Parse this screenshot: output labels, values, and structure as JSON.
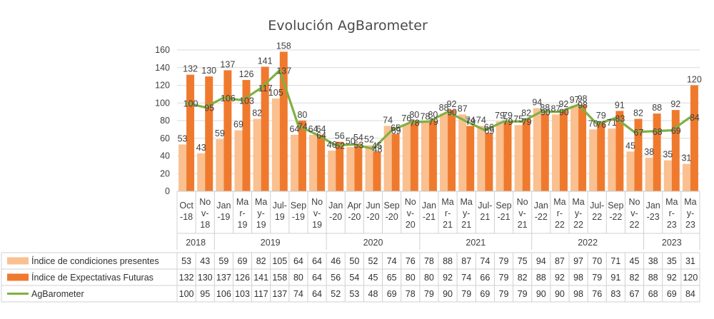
{
  "chart_data": {
    "type": "bar",
    "title": "Evolución AgBarometer",
    "ylim": [
      0,
      160
    ],
    "yticks": [
      0,
      20,
      40,
      60,
      80,
      100,
      120,
      140,
      160
    ],
    "grid": true,
    "categories": [
      [
        "Oct",
        "-18"
      ],
      [
        "No",
        "v-",
        "18"
      ],
      [
        "Jan",
        "-19"
      ],
      [
        "Ma",
        "r-",
        "19"
      ],
      [
        "Ma",
        "y-",
        "19"
      ],
      [
        "Jul-",
        "19"
      ],
      [
        "Sep",
        "-19"
      ],
      [
        "No",
        "v-",
        "19"
      ],
      [
        "Jan",
        "-20"
      ],
      [
        "Apr",
        "-20"
      ],
      [
        "Jun",
        "-20"
      ],
      [
        "Sep",
        "-20"
      ],
      [
        "No",
        "v-",
        "20"
      ],
      [
        "Jan",
        "-21"
      ],
      [
        "Ma",
        "r-",
        "21"
      ],
      [
        "Ma",
        "y-",
        "21"
      ],
      [
        "Jul-",
        "21"
      ],
      [
        "Sep",
        "-21"
      ],
      [
        "No",
        "v-",
        "21"
      ],
      [
        "Jan",
        "-22"
      ],
      [
        "Ma",
        "r-",
        "22"
      ],
      [
        "Ma",
        "y-",
        "22"
      ],
      [
        "Jul-",
        "22"
      ],
      [
        "Sep",
        "-22"
      ],
      [
        "No",
        "v-",
        "22"
      ],
      [
        "Jan",
        "-23"
      ],
      [
        "Ma",
        "r-",
        "23"
      ],
      [
        "Ma",
        "y-",
        "23"
      ]
    ],
    "years": [
      {
        "label": "2018",
        "count": 2
      },
      {
        "label": "2019",
        "count": 6
      },
      {
        "label": "2020",
        "count": 5
      },
      {
        "label": "2021",
        "count": 6
      },
      {
        "label": "2022",
        "count": 6
      },
      {
        "label": "2023",
        "count": 3
      }
    ],
    "series": [
      {
        "name": "Índice de condiciones presentes",
        "kind": "bar",
        "color": "#fac090",
        "values": [
          53,
          43,
          59,
          69,
          82,
          105,
          64,
          64,
          46,
          50,
          52,
          74,
          76,
          78,
          88,
          87,
          74,
          79,
          75,
          94,
          87,
          97,
          70,
          71,
          45,
          38,
          35,
          31
        ]
      },
      {
        "name": "Índice de Expectativas Futuras",
        "kind": "bar",
        "color": "#ef7a2e",
        "values": [
          132,
          130,
          137,
          126,
          141,
          158,
          80,
          64,
          56,
          54,
          45,
          65,
          80,
          80,
          92,
          74,
          66,
          79,
          82,
          88,
          92,
          98,
          79,
          91,
          82,
          88,
          92,
          120
        ]
      },
      {
        "name": "AgBarometer",
        "kind": "line",
        "color": "#80b040",
        "values": [
          100,
          95,
          106,
          103,
          117,
          137,
          74,
          64,
          52,
          53,
          48,
          69,
          78,
          79,
          90,
          79,
          69,
          79,
          79,
          90,
          90,
          98,
          76,
          83,
          67,
          68,
          69,
          84
        ]
      }
    ]
  }
}
